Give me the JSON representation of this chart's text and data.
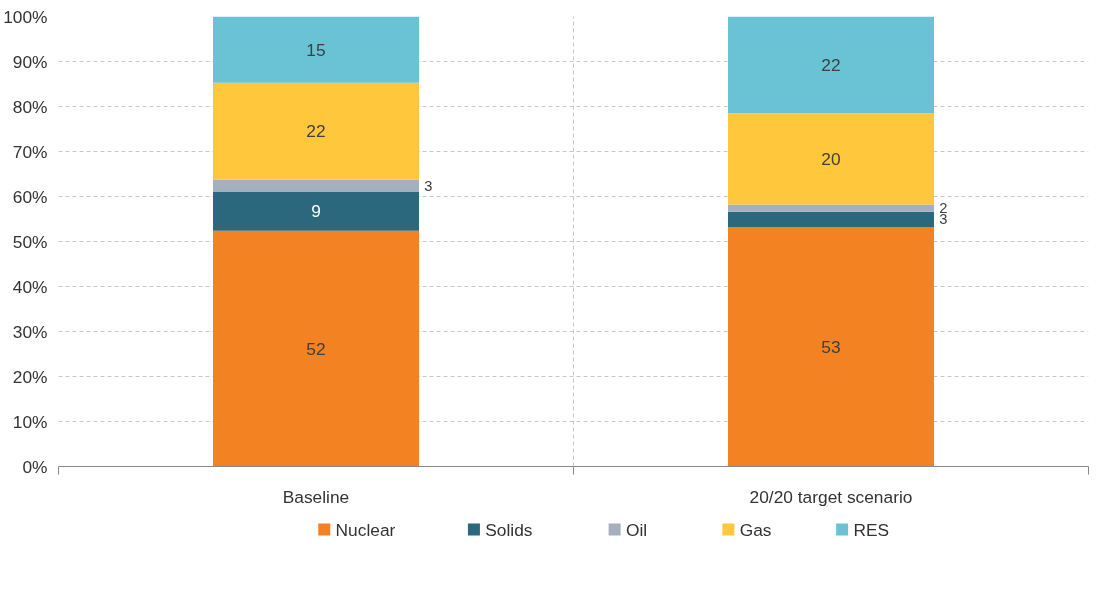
{
  "chart_data": {
    "type": "bar",
    "stacked": true,
    "categories": [
      "Baseline",
      "20/20 target scenario"
    ],
    "series": [
      {
        "name": "Nuclear",
        "color": "#f28222",
        "values": [
          52.4,
          53.2
        ],
        "value_labels": [
          "52",
          "53"
        ]
      },
      {
        "name": "Solids",
        "color": "#2b677d",
        "values": [
          8.7,
          3.4
        ],
        "value_labels": [
          "9",
          "3"
        ]
      },
      {
        "name": "Oil",
        "color": "#a5afbe",
        "values": [
          2.6,
          1.6
        ],
        "value_labels": [
          "3",
          "2"
        ]
      },
      {
        "name": "Gas",
        "color": "#ffc73b",
        "values": [
          21.6,
          20.3
        ],
        "value_labels": [
          "22",
          "20"
        ]
      },
      {
        "name": "RES",
        "color": "#6ac3d4",
        "values": [
          14.7,
          21.5
        ],
        "value_labels": [
          "15",
          "22"
        ]
      }
    ],
    "ylim": [
      0,
      100
    ],
    "yticks": [
      {
        "value": 0,
        "label": "0%"
      },
      {
        "value": 10,
        "label": "10%"
      },
      {
        "value": 20,
        "label": "20%"
      },
      {
        "value": 30,
        "label": "30%"
      },
      {
        "value": 40,
        "label": "40%"
      },
      {
        "value": 50,
        "label": "50%"
      },
      {
        "value": 60,
        "label": "60%"
      },
      {
        "value": 70,
        "label": "70%"
      },
      {
        "value": 80,
        "label": "80%"
      },
      {
        "value": 90,
        "label": "90%"
      },
      {
        "value": 100,
        "label": "100%"
      }
    ],
    "grid": true,
    "legend": "bottom"
  }
}
